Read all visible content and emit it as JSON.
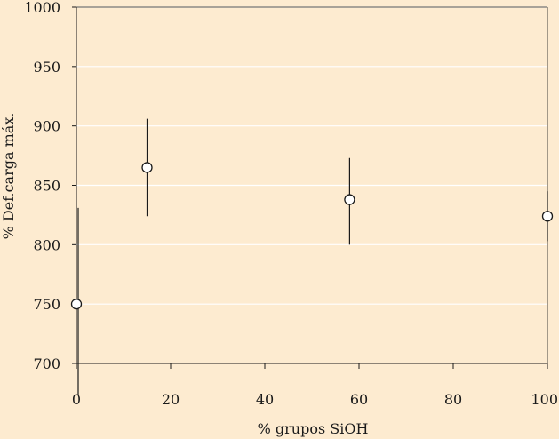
{
  "chart_data": {
    "type": "scatter",
    "title": "",
    "xlabel": "% grupos SiOH",
    "ylabel": "% Def.carga máx.",
    "xlim": [
      0,
      100
    ],
    "ylim": [
      700,
      1000
    ],
    "xticks": [
      0,
      20,
      40,
      60,
      80,
      100
    ],
    "yticks": [
      700,
      750,
      800,
      850,
      900,
      950,
      1000
    ],
    "grid": true,
    "series": [
      {
        "points": [
          {
            "x": 0,
            "y": 750,
            "err_low": 700,
            "err_high": 831
          },
          {
            "x": 15,
            "y": 865,
            "err_low": 824,
            "err_high": 906
          },
          {
            "x": 58,
            "y": 838,
            "err_low": 800,
            "err_high": 873
          },
          {
            "x": 100,
            "y": 824,
            "err_low": 803,
            "err_high": 845
          }
        ]
      }
    ],
    "colors": {
      "background": "#fdebd0",
      "gridline": "#ffffff",
      "axis": "#1a1a1a",
      "marker_fill": "#ffffff",
      "marker_stroke": "#1a1a1a"
    }
  }
}
